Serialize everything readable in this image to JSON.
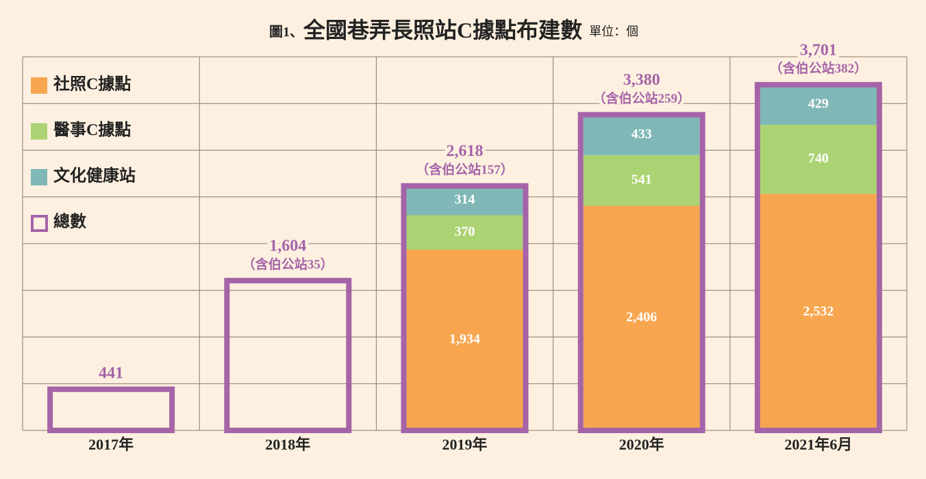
{
  "chart_data": {
    "type": "bar",
    "stacked": true,
    "title_prefix": "圖1、",
    "title": "全國巷弄長照站C據點布建數",
    "unit": "單位：個",
    "categories": [
      "2017年",
      "2018年",
      "2019年",
      "2020年",
      "2021年6月"
    ],
    "series": [
      {
        "name": "社照C據點",
        "color": "#f7a64f",
        "values": [
          null,
          null,
          1934,
          2406,
          2532
        ],
        "value_labels": [
          null,
          null,
          "1,934",
          "2,406",
          "2,532"
        ]
      },
      {
        "name": "醫事C據點",
        "color": "#acd373",
        "values": [
          null,
          null,
          370,
          541,
          740
        ]
      },
      {
        "name": "文化健康站",
        "color": "#7fb8b6",
        "values": [
          null,
          null,
          314,
          433,
          429
        ]
      }
    ],
    "totals": {
      "name": "總數",
      "color": "#a564a8",
      "values": [
        441,
        1604,
        2618,
        3380,
        3701
      ],
      "value_labels": [
        "441",
        "1,604",
        "2,618",
        "3,380",
        "3,701"
      ],
      "notes": [
        null,
        "（含伯公站35）",
        "（含伯公站157）",
        "（含伯公站259）",
        "（含伯公站382）"
      ]
    },
    "ylim": [
      0,
      4000
    ],
    "yticks": [
      0,
      500,
      1000,
      1500,
      2000,
      2500,
      3000,
      3500,
      4000
    ],
    "grid": true,
    "legend": "upper left"
  }
}
